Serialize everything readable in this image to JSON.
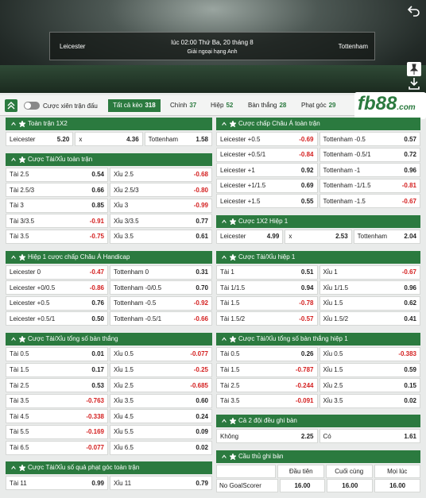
{
  "match": {
    "home": "Leicester",
    "away": "Tottenham",
    "time": "lúc 02:00 Thứ Ba, 20 tháng 8",
    "league": "Giải ngoại hạng Anh"
  },
  "toolbar": {
    "toggle": "Cược xiên trận đấu",
    "tabs": [
      {
        "label": "Tất cả kèo",
        "count": "318"
      },
      {
        "label": "Chính",
        "count": "37"
      },
      {
        "label": "Hiệp",
        "count": "52"
      },
      {
        "label": "Bàn thắng",
        "count": "28"
      },
      {
        "label": "Phạt góc",
        "count": "29"
      }
    ],
    "logo": "fb88",
    "logo_suffix": ".com"
  },
  "columns": [
    {
      "sections": [
        {
          "title": "Toàn trận 1X2",
          "rows": [
            [
              [
                "Leicester",
                "5.20"
              ],
              [
                "x",
                "4.36"
              ],
              [
                "Tottenham",
                "1.58"
              ]
            ]
          ]
        },
        {
          "title": "Cược Tài/Xỉu toàn trận",
          "rows": [
            [
              [
                "Tài 2.5",
                "0.54"
              ],
              [
                "Xỉu 2.5",
                "-0.68"
              ]
            ],
            [
              [
                "Tài 2.5/3",
                "0.66"
              ],
              [
                "Xỉu 2.5/3",
                "-0.80"
              ]
            ],
            [
              [
                "Tài 3",
                "0.85"
              ],
              [
                "Xỉu 3",
                "-0.99"
              ]
            ],
            [
              [
                "Tài 3/3.5",
                "-0.91"
              ],
              [
                "Xỉu 3/3.5",
                "0.77"
              ]
            ],
            [
              [
                "Tài 3.5",
                "-0.75"
              ],
              [
                "Xỉu 3.5",
                "0.61"
              ]
            ]
          ]
        },
        {
          "title": "Hiệp 1 cược chấp Châu Á Handicap",
          "rows": [
            [
              [
                "Leicester 0",
                "-0.47"
              ],
              [
                "Tottenham 0",
                "0.31"
              ]
            ],
            [
              [
                "Leicester +0/0.5",
                "-0.86"
              ],
              [
                "Tottenham -0/0.5",
                "0.70"
              ]
            ],
            [
              [
                "Leicester +0.5",
                "0.76"
              ],
              [
                "Tottenham -0.5",
                "-0.92"
              ]
            ],
            [
              [
                "Leicester +0.5/1",
                "0.50"
              ],
              [
                "Tottenham -0.5/1",
                "-0.66"
              ]
            ]
          ]
        },
        {
          "title": "Cược Tài/Xỉu tổng số bàn thắng",
          "rows": [
            [
              [
                "Tài 0.5",
                "0.01"
              ],
              [
                "Xỉu 0.5",
                "-0.077"
              ]
            ],
            [
              [
                "Tài 1.5",
                "0.17"
              ],
              [
                "Xỉu 1.5",
                "-0.25"
              ]
            ],
            [
              [
                "Tài 2.5",
                "0.53"
              ],
              [
                "Xỉu 2.5",
                "-0.685"
              ]
            ],
            [
              [
                "Tài 3.5",
                "-0.763"
              ],
              [
                "Xỉu 3.5",
                "0.60"
              ]
            ],
            [
              [
                "Tài 4.5",
                "-0.338"
              ],
              [
                "Xỉu 4.5",
                "0.24"
              ]
            ],
            [
              [
                "Tài 5.5",
                "-0.169"
              ],
              [
                "Xỉu 5.5",
                "0.09"
              ]
            ],
            [
              [
                "Tài 6.5",
                "-0.077"
              ],
              [
                "Xỉu 6.5",
                "0.02"
              ]
            ]
          ]
        },
        {
          "title": "Cược Tài/Xỉu số quả phạt góc toàn trận",
          "rows": [
            [
              [
                "Tài 11",
                "0.99"
              ],
              [
                "Xỉu 11",
                "0.79"
              ]
            ]
          ]
        }
      ]
    },
    {
      "sections": [
        {
          "title": "Cược chấp Châu Á toàn trận",
          "rows": [
            [
              [
                "Leicester +0.5",
                "-0.69"
              ],
              [
                "Tottenham -0.5",
                "0.57"
              ]
            ],
            [
              [
                "Leicester +0.5/1",
                "-0.84"
              ],
              [
                "Tottenham -0.5/1",
                "0.72"
              ]
            ],
            [
              [
                "Leicester +1",
                "0.92"
              ],
              [
                "Tottenham -1",
                "0.96"
              ]
            ],
            [
              [
                "Leicester +1/1.5",
                "0.69"
              ],
              [
                "Tottenham -1/1.5",
                "-0.81"
              ]
            ],
            [
              [
                "Leicester +1.5",
                "0.55"
              ],
              [
                "Tottenham -1.5",
                "-0.67"
              ]
            ]
          ]
        },
        {
          "title": "Cược 1X2 Hiệp 1",
          "rows": [
            [
              [
                "Leicester",
                "4.99"
              ],
              [
                "x",
                "2.53"
              ],
              [
                "Tottenham",
                "2.04"
              ]
            ]
          ]
        },
        {
          "title": "Cược Tài/Xỉu hiệp 1",
          "rows": [
            [
              [
                "Tài 1",
                "0.51"
              ],
              [
                "Xỉu 1",
                "-0.67"
              ]
            ],
            [
              [
                "Tài 1/1.5",
                "0.94"
              ],
              [
                "Xỉu 1/1.5",
                "0.96"
              ]
            ],
            [
              [
                "Tài 1.5",
                "-0.78"
              ],
              [
                "Xỉu 1.5",
                "0.62"
              ]
            ],
            [
              [
                "Tài 1.5/2",
                "-0.57"
              ],
              [
                "Xỉu 1.5/2",
                "0.41"
              ]
            ]
          ]
        },
        {
          "title": "Cược Tài/Xỉu tổng số bàn thắng hiệp 1",
          "rows": [
            [
              [
                "Tài 0.5",
                "0.26"
              ],
              [
                "Xỉu 0.5",
                "-0.383"
              ]
            ],
            [
              [
                "Tài 1.5",
                "-0.787"
              ],
              [
                "Xỉu 1.5",
                "0.59"
              ]
            ],
            [
              [
                "Tài 2.5",
                "-0.244"
              ],
              [
                "Xỉu 2.5",
                "0.15"
              ]
            ],
            [
              [
                "Tài 3.5",
                "-0.091"
              ],
              [
                "Xỉu 3.5",
                "0.02"
              ]
            ]
          ]
        },
        {
          "title": "Cả 2 đội đều ghi bàn",
          "rows": [
            [
              [
                "Không",
                "2.25"
              ],
              [
                "Có",
                "1.61"
              ]
            ]
          ]
        },
        {
          "title": "Cầu thủ ghi bàn",
          "columns": [
            "Đầu tiên",
            "Cuối cùng",
            "Mọi lúc"
          ],
          "scorers": [
            {
              "name": "No GoalScorer",
              "odds": [
                "16.00",
                "16.00",
                "16.00"
              ]
            }
          ]
        }
      ]
    }
  ]
}
